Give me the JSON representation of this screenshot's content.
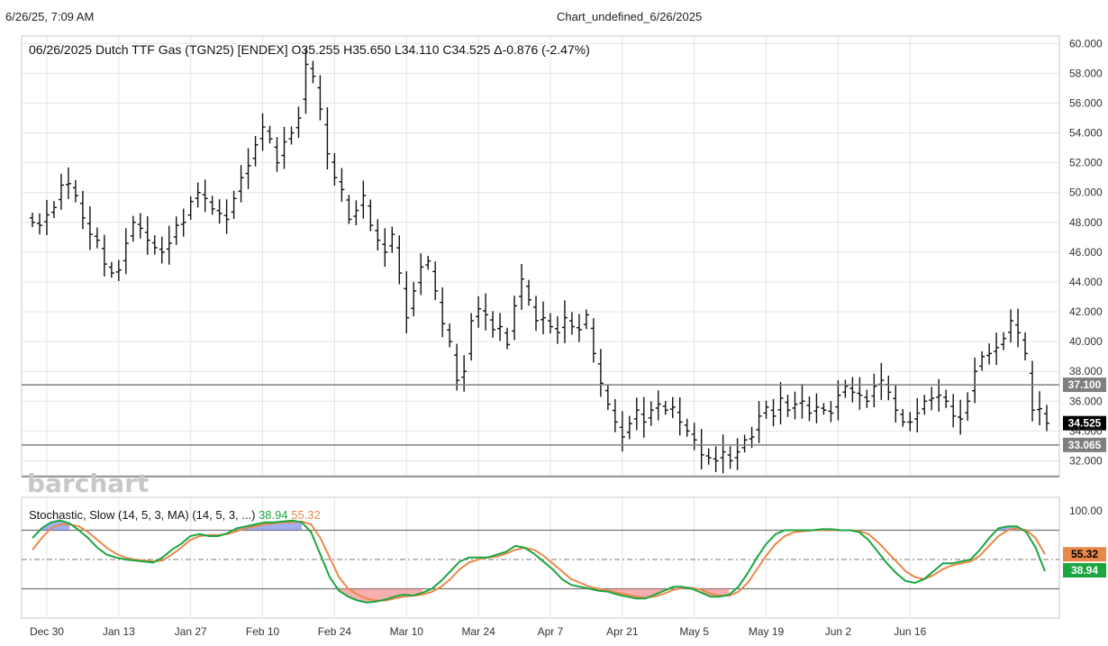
{
  "header": {
    "timestamp": "6/26/25, 7:09 AM",
    "chart_name": "Chart_undefined_6/26/2025"
  },
  "chart_data": {
    "type": "ohlc_bar",
    "title": "06/26/2025 Dutch TTF Gas (TGN25) [ENDEX] O35.255 H35.650 L34.110 C34.525 Δ-0.876 (-2.47%)",
    "watermark": "barchart",
    "price_axis": {
      "ylim": [
        31.0,
        60.5
      ],
      "ticks": [
        "60.000",
        "58.000",
        "56.000",
        "54.000",
        "52.000",
        "50.000",
        "48.000",
        "46.000",
        "44.000",
        "42.000",
        "40.000",
        "38.000",
        "36.000",
        "34.000",
        "32.000"
      ],
      "tick_values": [
        60,
        58,
        56,
        54,
        52,
        50,
        48,
        46,
        44,
        42,
        40,
        38,
        36,
        34,
        32
      ]
    },
    "x_labels": [
      "Dec 30",
      "Jan 13",
      "Jan 27",
      "Feb 10",
      "Feb 24",
      "Mar 10",
      "Mar 24",
      "Apr 7",
      "Apr 21",
      "May 5",
      "May 19",
      "Jun 2",
      "Jun 16"
    ],
    "x_label_index": [
      2,
      12,
      22,
      32,
      42,
      52,
      62,
      72,
      82,
      92,
      102,
      112,
      122
    ],
    "price_lines": [
      {
        "value": 37.1,
        "label": "37.100",
        "color": "#7f7f7f"
      },
      {
        "value": 33.065,
        "label": "33.065",
        "color": "#7f7f7f"
      }
    ],
    "last_price": {
      "value": 34.525,
      "label": "34.525",
      "color": "#000000"
    },
    "close_prices": [
      48.0,
      47.8,
      48.5,
      49.0,
      50.5,
      50.6,
      49.8,
      48.3,
      47.2,
      46.8,
      45.2,
      44.6,
      44.8,
      46.6,
      48.0,
      47.6,
      46.8,
      46.3,
      46.0,
      46.6,
      47.8,
      48.0,
      49.4,
      50.0,
      49.6,
      48.9,
      48.6,
      48.2,
      49.6,
      51.0,
      51.8,
      53.2,
      54.4,
      53.6,
      52.0,
      53.4,
      54.0,
      55.0,
      58.6,
      57.8,
      55.6,
      52.6,
      51.0,
      50.2,
      48.2,
      48.8,
      49.8,
      47.8,
      46.8,
      46.0,
      47.2,
      44.6,
      41.6,
      43.4,
      45.0,
      45.4,
      43.4,
      41.2,
      40.0,
      37.4,
      38.0,
      41.4,
      42.2,
      41.8,
      40.8,
      41.0,
      39.8,
      42.4,
      44.2,
      42.8,
      41.4,
      41.6,
      41.0,
      40.6,
      41.6,
      41.0,
      40.8,
      41.8,
      39.2,
      37.2,
      35.8,
      34.6,
      33.6,
      34.5,
      35.4,
      34.6,
      35.4,
      35.8,
      35.4,
      35.6,
      34.6,
      34.0,
      33.4,
      32.4,
      32.2,
      32.0,
      32.6,
      32.0,
      32.6,
      33.4,
      33.6,
      35.0,
      35.6,
      35.0,
      36.2,
      35.4,
      35.8,
      36.0,
      35.2,
      35.6,
      35.4,
      35.2,
      36.4,
      37.0,
      36.6,
      36.4,
      36.0,
      37.0,
      37.4,
      36.6,
      35.4,
      34.6,
      34.6,
      35.2,
      36.0,
      36.2,
      36.4,
      36.0,
      35.0,
      34.8,
      36.0,
      38.0,
      39.0,
      39.2,
      39.6,
      40.2,
      41.4,
      40.6,
      39.2,
      35.4,
      35.5,
      34.525
    ],
    "stochastic": {
      "label": "Stochastic, Slow (14, 5, 3, MA)  (14, 5, 3, ...)",
      "k_value": "38.94",
      "d_value": "55.32",
      "k_color": "#1aa640",
      "d_color": "#e8894a",
      "ylim": [
        -10,
        110
      ],
      "levels": [
        80,
        50,
        20
      ],
      "tick_label": "100.00",
      "k": [
        72,
        82,
        88,
        90,
        87,
        80,
        72,
        62,
        55,
        52,
        50,
        49,
        48,
        47,
        52,
        60,
        66,
        74,
        76,
        74,
        74,
        77,
        82,
        84,
        86,
        88,
        88,
        89,
        90,
        88,
        78,
        55,
        32,
        18,
        12,
        8,
        6,
        7,
        9,
        12,
        14,
        13,
        16,
        20,
        28,
        38,
        48,
        52,
        52,
        52,
        55,
        58,
        64,
        62,
        56,
        48,
        40,
        30,
        24,
        22,
        20,
        18,
        17,
        14,
        12,
        10,
        10,
        14,
        18,
        22,
        22,
        20,
        16,
        12,
        12,
        14,
        22,
        36,
        52,
        66,
        76,
        80,
        80,
        80,
        80,
        81,
        81,
        80,
        80,
        78,
        70,
        58,
        46,
        36,
        28,
        26,
        30,
        38,
        46,
        46,
        48,
        50,
        60,
        72,
        82,
        84,
        84,
        78,
        62,
        38
      ],
      "d": [
        60,
        72,
        82,
        86,
        86,
        84,
        78,
        70,
        62,
        56,
        52,
        50,
        49,
        48,
        49,
        55,
        62,
        70,
        74,
        75,
        75,
        76,
        79,
        82,
        84,
        86,
        87,
        88,
        88,
        89,
        86,
        72,
        52,
        32,
        20,
        14,
        10,
        8,
        8,
        10,
        12,
        13,
        14,
        17,
        22,
        30,
        40,
        47,
        50,
        52,
        53,
        56,
        60,
        62,
        60,
        54,
        46,
        38,
        30,
        26,
        22,
        20,
        18,
        16,
        14,
        12,
        11,
        12,
        15,
        19,
        21,
        21,
        19,
        15,
        13,
        13,
        17,
        26,
        40,
        54,
        66,
        74,
        78,
        79,
        80,
        80,
        80,
        80,
        80,
        79,
        76,
        68,
        58,
        48,
        38,
        32,
        30,
        34,
        40,
        44,
        46,
        48,
        54,
        64,
        74,
        80,
        82,
        80,
        72,
        55.32
      ]
    }
  }
}
